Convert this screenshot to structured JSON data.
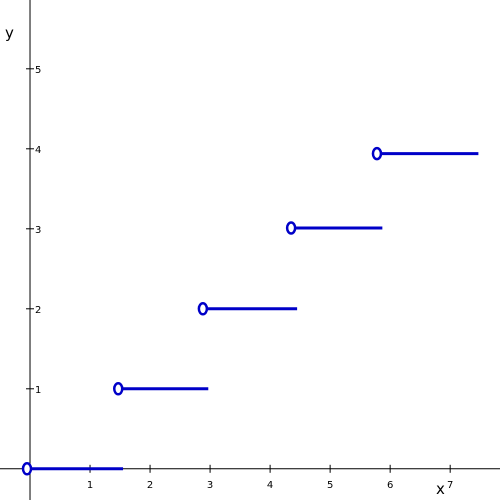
{
  "chart_data": {
    "type": "step",
    "x_label": "x",
    "y_label": "y",
    "xlim": [
      -0.5,
      7.83
    ],
    "ylim": [
      -0.39,
      5.86
    ],
    "xticks": [
      1,
      2,
      3,
      4,
      5,
      6,
      7
    ],
    "yticks": [
      1,
      2,
      3,
      4,
      5
    ],
    "color": "#0000c8",
    "series": [
      {
        "x": [
          -0.05,
          1.55
        ],
        "values": [
          0,
          0
        ]
      },
      {
        "x": [
          1.47,
          2.97
        ],
        "values": [
          1,
          1
        ]
      },
      {
        "x": [
          2.88,
          4.45
        ],
        "values": [
          2,
          2
        ]
      },
      {
        "x": [
          4.35,
          5.87
        ],
        "values": [
          3.01,
          3.01
        ]
      },
      {
        "x": [
          5.78,
          7.47
        ],
        "values": [
          3.94,
          3.94
        ]
      }
    ]
  }
}
